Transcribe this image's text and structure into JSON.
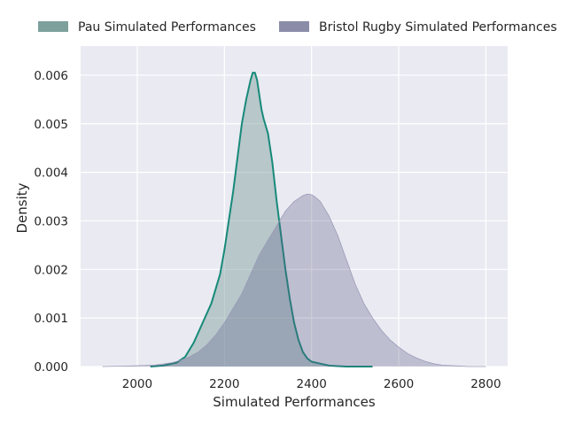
{
  "chart_data": {
    "type": "area",
    "title": "",
    "xlabel": "Simulated Performances",
    "ylabel": "Density",
    "xlim": [
      1870,
      2850
    ],
    "ylim": [
      0,
      0.0066
    ],
    "xticks": [
      2000,
      2200,
      2400,
      2600,
      2800
    ],
    "xtick_labels": [
      "2000",
      "2200",
      "2400",
      "2600",
      "2800"
    ],
    "yticks": [
      0.0,
      0.001,
      0.002,
      0.003,
      0.004,
      0.005,
      0.006
    ],
    "ytick_labels": [
      "0.000",
      "0.001",
      "0.002",
      "0.003",
      "0.004",
      "0.005",
      "0.006"
    ],
    "grid": true,
    "legend_position": "top-center",
    "background_color": "#eaeaf2",
    "series": [
      {
        "name": "Pau Simulated Performances",
        "fill_color": "#7a9e9a",
        "fill_opacity": 0.45,
        "legend_swatch_color": "#7da09c",
        "line_color": "#178a7a",
        "x": [
          2030,
          2060,
          2090,
          2110,
          2130,
          2150,
          2170,
          2190,
          2200,
          2210,
          2220,
          2230,
          2240,
          2250,
          2260,
          2265,
          2270,
          2275,
          2280,
          2285,
          2290,
          2300,
          2310,
          2320,
          2330,
          2340,
          2350,
          2360,
          2370,
          2380,
          2390,
          2400,
          2420,
          2440,
          2460,
          2480,
          2500,
          2520,
          2540
        ],
        "y": [
          0.0,
          2e-05,
          8e-05,
          0.0002,
          0.0005,
          0.0009,
          0.0013,
          0.0019,
          0.0024,
          0.003,
          0.0036,
          0.0043,
          0.005,
          0.0055,
          0.0059,
          0.00605,
          0.00605,
          0.0059,
          0.0056,
          0.0053,
          0.0051,
          0.0048,
          0.0042,
          0.0034,
          0.0027,
          0.002,
          0.0014,
          0.0009,
          0.00055,
          0.0003,
          0.00017,
          0.0001,
          6e-05,
          2e-05,
          1e-05,
          0.0,
          0.0,
          0.0,
          0.0
        ]
      },
      {
        "name": "Bristol Rugby Simulated Performances",
        "fill_color": "#595a85",
        "fill_opacity": 0.3,
        "legend_swatch_color": "#8b8ca8",
        "line_color": "#9a9ab8",
        "x": [
          1920,
          1980,
          2040,
          2080,
          2100,
          2120,
          2140,
          2160,
          2180,
          2200,
          2220,
          2240,
          2260,
          2280,
          2300,
          2320,
          2340,
          2360,
          2380,
          2390,
          2400,
          2410,
          2420,
          2440,
          2460,
          2480,
          2500,
          2520,
          2540,
          2560,
          2580,
          2600,
          2620,
          2640,
          2660,
          2680,
          2700,
          2720,
          2740,
          2760,
          2800
        ],
        "y": [
          0.0,
          1e-05,
          3e-05,
          8e-05,
          0.00013,
          0.0002,
          0.0003,
          0.00045,
          0.00065,
          0.0009,
          0.0012,
          0.0015,
          0.0019,
          0.0023,
          0.0026,
          0.0029,
          0.0032,
          0.0034,
          0.00352,
          0.00355,
          0.00354,
          0.00348,
          0.0034,
          0.0031,
          0.0027,
          0.0022,
          0.0017,
          0.0013,
          0.001,
          0.00075,
          0.00055,
          0.0004,
          0.00027,
          0.00018,
          0.00011,
          6e-05,
          3e-05,
          2e-05,
          1e-05,
          0.0,
          0.0
        ]
      }
    ]
  }
}
